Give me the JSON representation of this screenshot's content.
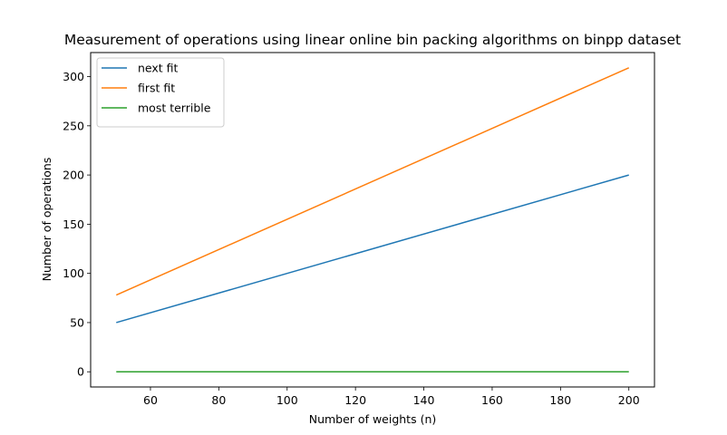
{
  "chart_data": {
    "type": "line",
    "title": "Measurement of operations using linear online bin packing algorithms on binpp dataset",
    "xlabel": "Number of weights (n)",
    "ylabel": "Number of operations",
    "x": [
      50,
      200
    ],
    "series": [
      {
        "name": "next fit",
        "color": "#1f77b4",
        "values": [
          50,
          200
        ]
      },
      {
        "name": "first fit",
        "color": "#ff7f0e",
        "values": [
          78,
          309
        ]
      },
      {
        "name": "most terrible",
        "color": "#2ca02c",
        "values": [
          0,
          0
        ]
      }
    ],
    "xlim": [
      42.5,
      207.5
    ],
    "ylim": [
      -15.45,
      324.45
    ],
    "xticks": [
      60,
      80,
      100,
      120,
      140,
      160,
      180,
      200
    ],
    "yticks": [
      0,
      50,
      100,
      150,
      200,
      250,
      300
    ],
    "grid": false,
    "legend_position": "upper left"
  }
}
